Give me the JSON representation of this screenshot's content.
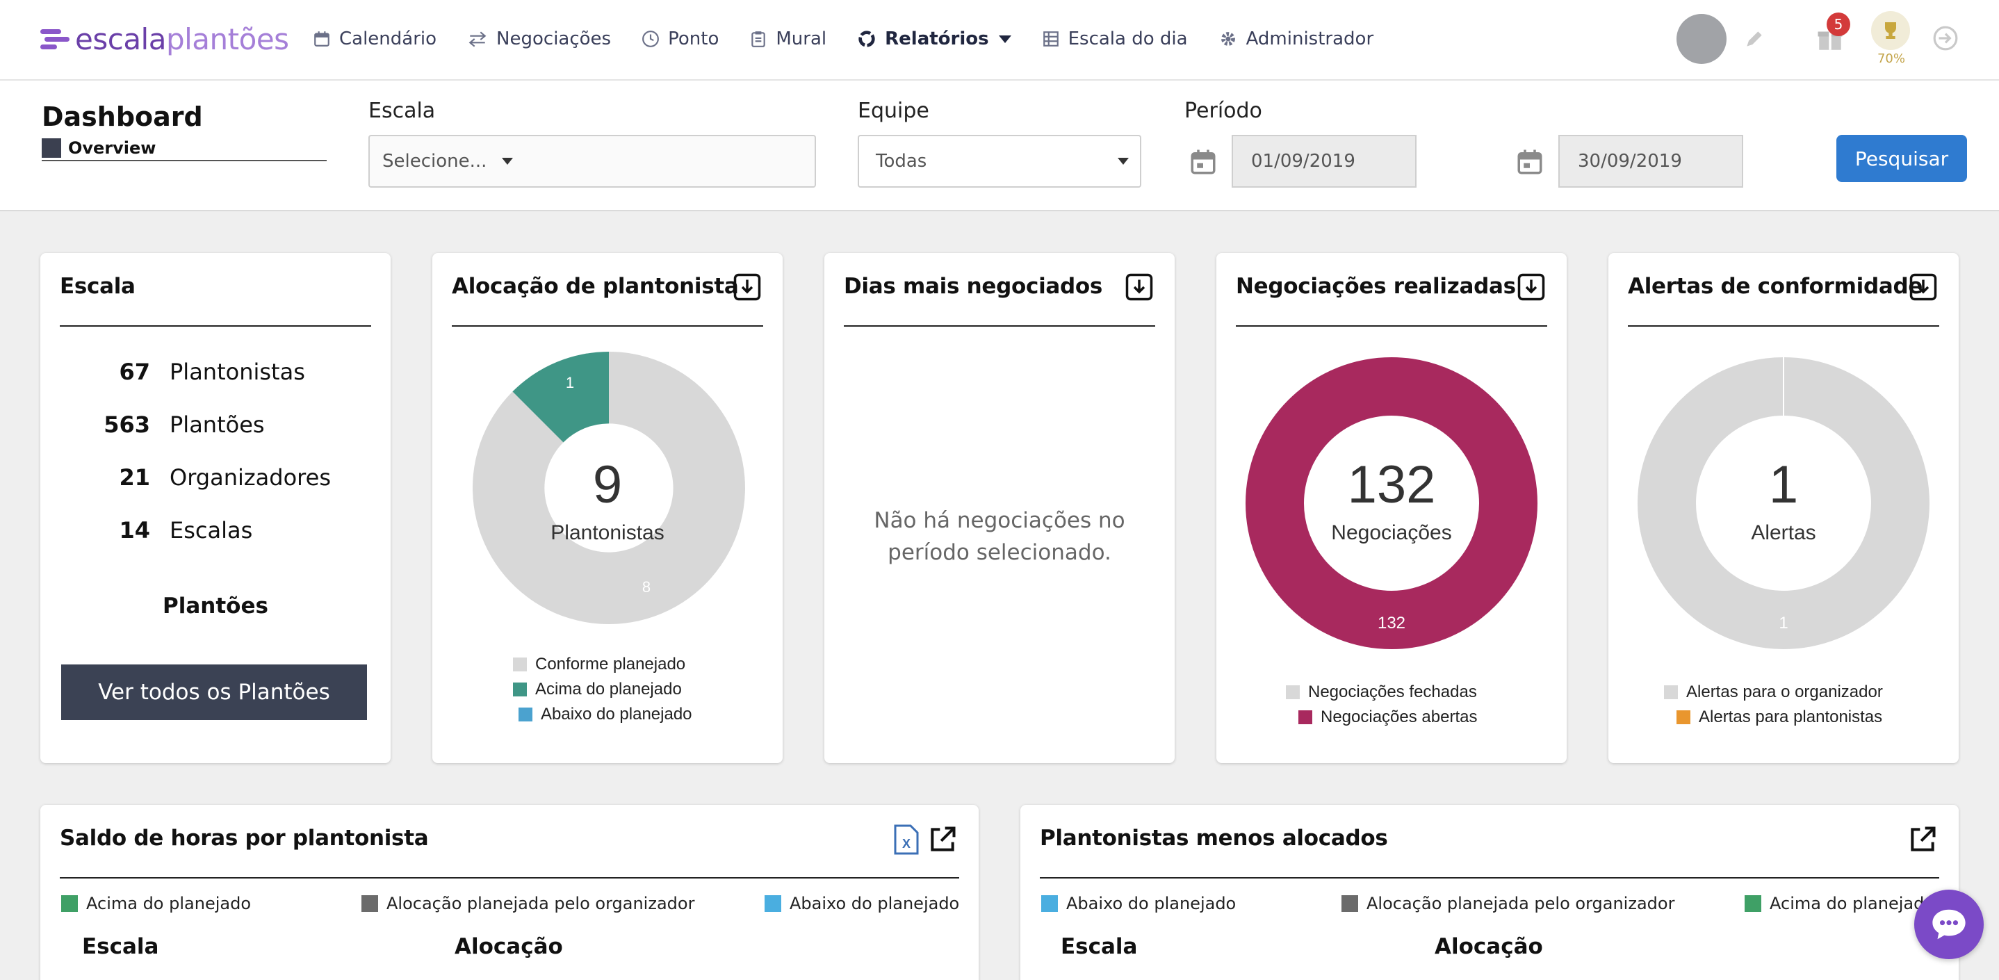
{
  "nav": {
    "logo_part1": "escala",
    "logo_part2": "plantões",
    "items": [
      {
        "label": "Calendário",
        "icon": "calendar-icon"
      },
      {
        "label": "Negociações",
        "icon": "swap-icon"
      },
      {
        "label": "Ponto",
        "icon": "clock-icon"
      },
      {
        "label": "Mural",
        "icon": "clipboard-icon"
      },
      {
        "label": "Relatórios",
        "icon": "reports-icon"
      },
      {
        "label": "Escala do dia",
        "icon": "table-icon"
      },
      {
        "label": "Administrador",
        "icon": "gear-icon"
      }
    ],
    "notifications_count": "5",
    "trophy_percent": "70%",
    "colors": {
      "brand": "#7b4ac7",
      "primary": "#2f7bd0"
    }
  },
  "filters": {
    "page_title": "Dashboard",
    "tab_overview": "Overview",
    "escala_label": "Escala",
    "escala_value": "Selecione...",
    "equipe_label": "Equipe",
    "equipe_value": "Todas",
    "periodo_label": "Período",
    "date_from": "01/09/2019",
    "date_to": "30/09/2019",
    "search_button": "Pesquisar"
  },
  "cards": {
    "escala": {
      "title": "Escala",
      "stats": [
        {
          "num": "67",
          "label": "Plantonistas"
        },
        {
          "num": "563",
          "label": "Plantões"
        },
        {
          "num": "21",
          "label": "Organizadores"
        },
        {
          "num": "14",
          "label": "Escalas"
        }
      ],
      "link": "Plantões",
      "button": "Ver todos os Plantões"
    },
    "alocacao": {
      "title": "Alocação de plantonista",
      "center_value": "9",
      "center_label": "Plantonistas",
      "slices": [
        {
          "label": "Conforme planejado",
          "value": 8,
          "color": "#d8d8d8"
        },
        {
          "label": "Acima do planejado",
          "value": 1,
          "color": "#3f9686"
        },
        {
          "label": "Abaixo do planejado",
          "value": 0,
          "color": "#4ba2cf"
        }
      ]
    },
    "dias": {
      "title": "Dias mais negociados",
      "empty_message": "Não há negociações no período selecionado."
    },
    "negociacoes": {
      "title": "Negociações realizadas",
      "center_value": "132",
      "center_label": "Negociações",
      "slices": [
        {
          "label": "Negociações fechadas",
          "value": 0,
          "color": "#d8d8d8"
        },
        {
          "label": "Negociações abertas",
          "value": 132,
          "color": "#a8295e"
        }
      ]
    },
    "alertas": {
      "title": "Alertas de conformidade",
      "center_value": "1",
      "center_label": "Alertas",
      "slices": [
        {
          "label": "Alertas para o organizador",
          "value": 1,
          "color": "#d8d8d8"
        },
        {
          "label": "Alertas para plantonistas",
          "value": 0,
          "color": "#e9962e"
        }
      ]
    },
    "saldo": {
      "title": "Saldo de horas por plantonista",
      "legend": [
        {
          "label": "Acima do planejado",
          "color": "#3fa066"
        },
        {
          "label": "Alocação planejada pelo organizador",
          "color": "#6b6b6b"
        },
        {
          "label": "Abaixo do planejado",
          "color": "#4aaee0"
        }
      ],
      "col1": "Escala",
      "col2": "Alocação"
    },
    "menos": {
      "title": "Plantonistas menos alocados",
      "legend": [
        {
          "label": "Abaixo do planejado",
          "color": "#4aaee0"
        },
        {
          "label": "Alocação planejada pelo organizador",
          "color": "#6b6b6b"
        },
        {
          "label": "Acima do planejado",
          "color": "#3fa066"
        }
      ],
      "col1": "Escala",
      "col2": "Alocação"
    }
  },
  "chart_data": [
    {
      "type": "pie",
      "categories": [
        "Conforme planejado",
        "Acima do planejado",
        "Abaixo do planejado"
      ],
      "values": [
        8,
        1,
        0
      ]
    },
    {
      "type": "pie",
      "categories": [
        "Negociações fechadas",
        "Negociações abertas"
      ],
      "values": [
        0,
        132
      ]
    },
    {
      "type": "pie",
      "categories": [
        "Alertas para o organizador",
        "Alertas para plantonistas"
      ],
      "values": [
        1,
        0
      ]
    }
  ]
}
